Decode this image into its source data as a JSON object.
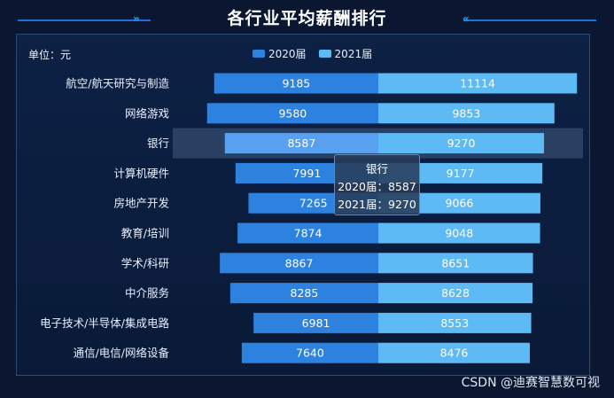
{
  "title": "各行业平均薪酬排行",
  "unit_label": "单位：元",
  "watermark": "CSDN @迪赛智慧数可视",
  "colors": {
    "s2020": "#2d82e0",
    "s2021": "#5ebaf5",
    "highlight": "#5aa0f0"
  },
  "chart_data": {
    "type": "bar",
    "orientation": "horizontal-diverging",
    "categories": [
      "航空/航天研究与制造",
      "网络游戏",
      "银行",
      "计算机硬件",
      "房地产开发",
      "教育/培训",
      "学术/科研",
      "中介服务",
      "电子技术/半导体/集成电路",
      "通信/电信/网络设备"
    ],
    "series": [
      {
        "name": "2020届",
        "values": [
          9185,
          9580,
          8587,
          7991,
          7265,
          7874,
          8867,
          8285,
          6981,
          7640
        ]
      },
      {
        "name": "2021届",
        "values": [
          11114,
          9853,
          9270,
          9177,
          9066,
          9048,
          8651,
          8628,
          8553,
          8476
        ]
      }
    ],
    "xlim": [
      0,
      11500
    ],
    "legend_position": "top-center",
    "highlighted_category": "银行"
  },
  "tooltip": {
    "title": "银行",
    "line1": "2020届：8587",
    "line2": "2021届：9270"
  }
}
